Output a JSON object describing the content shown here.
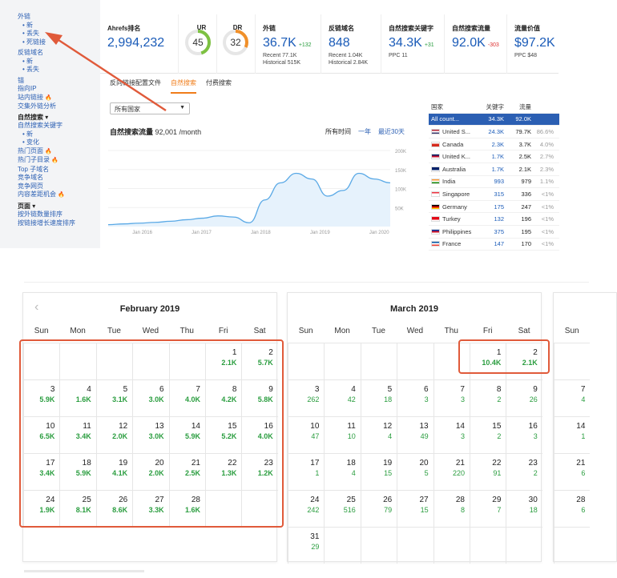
{
  "sidebar": [
    {
      "t": "link",
      "text": "外链"
    },
    {
      "t": "sub",
      "text": "• 新"
    },
    {
      "t": "sub",
      "text": "• 丢失"
    },
    {
      "t": "sub",
      "text": "• 死链接"
    },
    {
      "t": "gap"
    },
    {
      "t": "link",
      "text": "反链域名"
    },
    {
      "t": "sub",
      "text": "• 新"
    },
    {
      "t": "sub",
      "text": "• 丢失"
    },
    {
      "t": "gap"
    },
    {
      "t": "link",
      "text": "锚"
    },
    {
      "t": "link",
      "text": "指向IP"
    },
    {
      "t": "link",
      "text": "站内链接",
      "fire": true
    },
    {
      "t": "link",
      "text": "交集外链分析"
    },
    {
      "t": "gap"
    },
    {
      "t": "head",
      "text": "自然搜索 ▾"
    },
    {
      "t": "link",
      "text": "自然搜索关键字"
    },
    {
      "t": "sub",
      "text": "• 新"
    },
    {
      "t": "sub",
      "text": "• 变化"
    },
    {
      "t": "link",
      "text": "热门页面",
      "fire": true
    },
    {
      "t": "link",
      "text": "热门子目录",
      "fire": true
    },
    {
      "t": "link",
      "text": "Top 子域名"
    },
    {
      "t": "link",
      "text": "竞争域名"
    },
    {
      "t": "link",
      "text": "竞争网页"
    },
    {
      "t": "link",
      "text": "内容差距机会",
      "fire": true
    },
    {
      "t": "gap"
    },
    {
      "t": "head",
      "text": "页面 ▾"
    },
    {
      "t": "link",
      "text": "按外链数量排序"
    },
    {
      "t": "link",
      "text": "按链接增长速度排序"
    }
  ],
  "metrics": {
    "ahrefs_rank_label": "Ahrefs排名",
    "ahrefs_rank": "2,994,232",
    "ur_label": "UR",
    "ur": "45",
    "ur_value": 45,
    "dr_label": "DR",
    "dr": "32",
    "dr_value": 32,
    "backlinks_label": "外链",
    "backlinks": "36.7K",
    "backlinks_delta": "+132",
    "backlinks_recent": "Recent 77.1K",
    "backlinks_hist": "Historical 515K",
    "ref_domains_label": "反链域名",
    "ref_domains": "848",
    "ref_recent": "Recent 1.04K",
    "ref_hist": "Historical 2.84K",
    "org_kw_label": "自然搜索关键字",
    "org_kw": "34.3K",
    "org_kw_delta": "+31",
    "org_kw_ppc": "PPC 11",
    "org_traffic_label": "自然搜索流量",
    "org_traffic": "92.0K",
    "org_traffic_delta": "-303",
    "traffic_value_label": "流量价值",
    "traffic_value": "$97.2K",
    "traffic_value_ppc": "PPC $48",
    "ur_color": "#7dc142",
    "dr_color": "#f0902a"
  },
  "tabs": [
    {
      "label": "反向链接配置文件",
      "active": false
    },
    {
      "label": "自然搜索",
      "active": true
    },
    {
      "label": "付费搜索",
      "active": false
    }
  ],
  "country_select": "所有国家",
  "traffic": {
    "title": "自然搜索流量",
    "value": "92,001 /month",
    "ranges": [
      "所有时间",
      "一年",
      "最近30天"
    ]
  },
  "chart_data": {
    "type": "line",
    "x": [
      "2015-08",
      "2015-11",
      "2016-02",
      "2016-05",
      "2016-08",
      "2016-11",
      "2017-02",
      "2017-05",
      "2017-08",
      "2017-11",
      "2018-02",
      "2018-05",
      "2018-08",
      "2018-11",
      "2019-02",
      "2019-05",
      "2019-08",
      "2019-11",
      "2020-01"
    ],
    "series": [
      {
        "values": [
          5,
          7,
          9,
          11,
          14,
          18,
          22,
          28,
          25,
          10,
          70,
          115,
          140,
          125,
          80,
          95,
          140,
          125,
          115
        ]
      }
    ],
    "x_tick_labels": [
      "Jan 2016",
      "Jan 2017",
      "Jan 2018",
      "Jan 2019",
      "Jan 2020"
    ],
    "y_tick_labels": [
      "200K",
      "150K",
      "100K",
      "50K"
    ],
    "ylim": [
      0,
      200
    ],
    "y_unit": "K",
    "line_color": "#5aa9e6"
  },
  "countries": {
    "headers": [
      "国家",
      "关键字",
      "流量",
      ""
    ],
    "rows": [
      {
        "name": "All count...",
        "kw": "34.3K",
        "tr": "92.0K",
        "pc": "",
        "sel": true,
        "flag": ""
      },
      {
        "name": "United S...",
        "kw": "24.3K",
        "tr": "79.7K",
        "pc": "86.6%",
        "flag": "us"
      },
      {
        "name": "Canada",
        "kw": "2.3K",
        "tr": "3.7K",
        "pc": "4.0%",
        "flag": "ca"
      },
      {
        "name": "United K...",
        "kw": "1.7K",
        "tr": "2.5K",
        "pc": "2.7%",
        "flag": "uk"
      },
      {
        "name": "Australia",
        "kw": "1.7K",
        "tr": "2.1K",
        "pc": "2.3%",
        "flag": "au"
      },
      {
        "name": "India",
        "kw": "993",
        "tr": "979",
        "pc": "1.1%",
        "flag": "in"
      },
      {
        "name": "Singapore",
        "kw": "315",
        "tr": "336",
        "pc": "<1%",
        "flag": "sg"
      },
      {
        "name": "Germany",
        "kw": "175",
        "tr": "247",
        "pc": "<1%",
        "flag": "de"
      },
      {
        "name": "Turkey",
        "kw": "132",
        "tr": "196",
        "pc": "<1%",
        "flag": "tr"
      },
      {
        "name": "Philippines",
        "kw": "375",
        "tr": "195",
        "pc": "<1%",
        "flag": "ph"
      },
      {
        "name": "France",
        "kw": "147",
        "tr": "170",
        "pc": "<1%",
        "flag": "fr"
      }
    ]
  },
  "flag_colors": {
    "us": [
      "#b22234",
      "#ffffff",
      "#3c3b6e"
    ],
    "ca": [
      "#ffffff",
      "#d52b1e",
      "#d52b1e"
    ],
    "uk": [
      "#012169",
      "#c8102e",
      "#ffffff"
    ],
    "au": [
      "#012169",
      "#012169",
      "#ffffff"
    ],
    "in": [
      "#ff9933",
      "#ffffff",
      "#138808"
    ],
    "sg": [
      "#ef3340",
      "#ffffff",
      "#ffffff"
    ],
    "de": [
      "#000000",
      "#dd0000",
      "#ffce00"
    ],
    "tr": [
      "#e30a17",
      "#e30a17",
      "#ffffff"
    ],
    "ph": [
      "#0038a8",
      "#ce1126",
      "#ffffff"
    ],
    "fr": [
      "#0055a4",
      "#ffffff",
      "#ef4135"
    ]
  },
  "calendars": [
    {
      "title": "February 2019",
      "dow": [
        "Sun",
        "Mon",
        "Tue",
        "Wed",
        "Thu",
        "Fri",
        "Sat"
      ],
      "start": 5,
      "days": [
        [
          "1",
          "2.1K"
        ],
        [
          "2",
          "5.7K"
        ],
        [
          "3",
          "5.9K"
        ],
        [
          "4",
          "1.6K"
        ],
        [
          "5",
          "3.1K"
        ],
        [
          "6",
          "3.0K"
        ],
        [
          "7",
          "4.0K"
        ],
        [
          "8",
          "4.2K"
        ],
        [
          "9",
          "5.8K"
        ],
        [
          "10",
          "6.5K"
        ],
        [
          "11",
          "3.4K"
        ],
        [
          "12",
          "2.0K"
        ],
        [
          "13",
          "3.0K"
        ],
        [
          "14",
          "5.9K"
        ],
        [
          "15",
          "5.2K"
        ],
        [
          "16",
          "4.0K"
        ],
        [
          "17",
          "3.4K"
        ],
        [
          "18",
          "5.9K"
        ],
        [
          "19",
          "4.1K"
        ],
        [
          "20",
          "2.0K"
        ],
        [
          "21",
          "2.5K"
        ],
        [
          "22",
          "1.3K"
        ],
        [
          "23",
          "1.2K"
        ],
        [
          "24",
          "1.9K"
        ],
        [
          "25",
          "8.1K"
        ],
        [
          "26",
          "8.6K"
        ],
        [
          "27",
          "3.3K"
        ],
        [
          "28",
          "1.6K"
        ]
      ]
    },
    {
      "title": "March 2019",
      "dow": [
        "Sun",
        "Mon",
        "Tue",
        "Wed",
        "Thu",
        "Fri",
        "Sat"
      ],
      "start": 5,
      "days": [
        [
          "1",
          "10.4K"
        ],
        [
          "2",
          "2.1K"
        ],
        [
          "3",
          "262"
        ],
        [
          "4",
          "42"
        ],
        [
          "5",
          "18"
        ],
        [
          "6",
          "3"
        ],
        [
          "7",
          "3"
        ],
        [
          "8",
          "2"
        ],
        [
          "9",
          "26"
        ],
        [
          "10",
          "47"
        ],
        [
          "11",
          "10"
        ],
        [
          "12",
          "4"
        ],
        [
          "13",
          "49"
        ],
        [
          "14",
          "3"
        ],
        [
          "15",
          "2"
        ],
        [
          "16",
          "3"
        ],
        [
          "17",
          "1"
        ],
        [
          "18",
          "4"
        ],
        [
          "19",
          "15"
        ],
        [
          "20",
          "5"
        ],
        [
          "21",
          "220"
        ],
        [
          "22",
          "91"
        ],
        [
          "23",
          "2"
        ],
        [
          "24",
          "242"
        ],
        [
          "25",
          "516"
        ],
        [
          "26",
          "79"
        ],
        [
          "27",
          "15"
        ],
        [
          "28",
          "8"
        ],
        [
          "29",
          "7"
        ],
        [
          "30",
          "18"
        ],
        [
          "31",
          "29"
        ]
      ]
    },
    {
      "title": "",
      "dow": [
        "Sun"
      ],
      "start": 0,
      "days": [
        [
          "7",
          "4"
        ],
        [
          "14",
          "1"
        ],
        [
          "21",
          "6"
        ],
        [
          "28",
          "6"
        ]
      ]
    }
  ]
}
